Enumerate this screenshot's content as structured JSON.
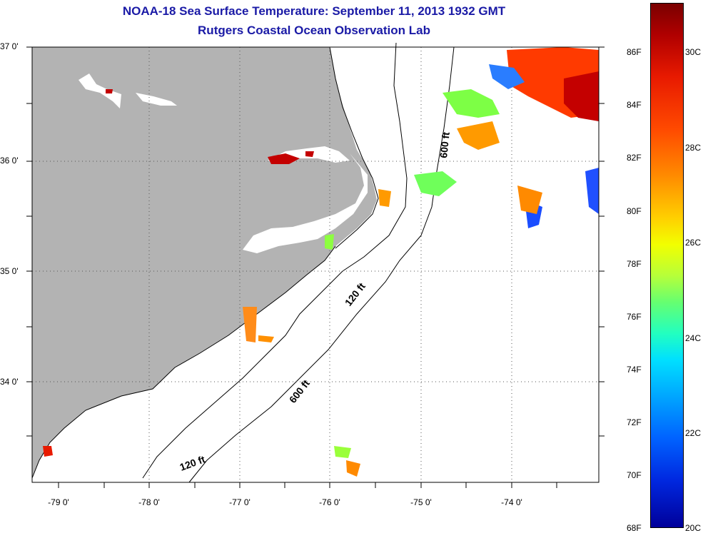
{
  "title": {
    "line1": "NOAA-18 Sea Surface Temperature:  September 11, 2013 1932 GMT",
    "line2": "Rutgers Coastal Ocean Observation Lab"
  },
  "map": {
    "lat_labels": [
      "37 0'",
      "36 0'",
      "35 0'",
      "34 0'"
    ],
    "lon_labels": [
      "-79 0'",
      "-78 0'",
      "-77 0'",
      "-76 0'",
      "-75 0'",
      "-74 0'"
    ],
    "contour_labels": [
      "600 ft",
      "120 ft",
      "600 ft",
      "120 ft"
    ],
    "grid": "dotted",
    "land_color": "#b3b3b3",
    "water_color": "#ffffff"
  },
  "colorbar": {
    "fahrenheit_labels": [
      "86F",
      "84F",
      "82F",
      "80F",
      "78F",
      "76F",
      "74F",
      "72F",
      "70F",
      "68F"
    ],
    "celsius_labels": [
      "30C",
      "28C",
      "26C",
      "24C",
      "22C",
      "20C"
    ],
    "range_c": [
      20,
      31.1
    ],
    "colormap": "jet"
  }
}
